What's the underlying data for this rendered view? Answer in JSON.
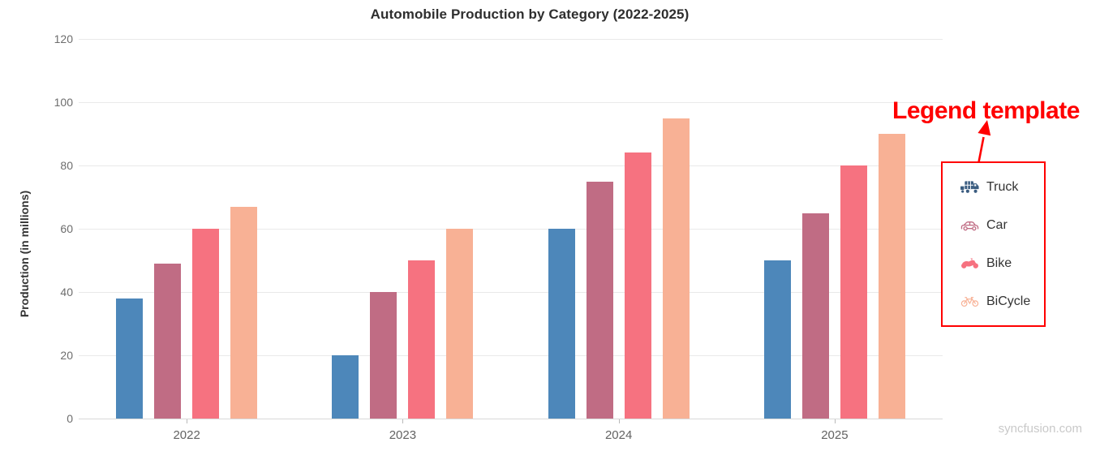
{
  "title": "Automobile Production by Category (2022-2025)",
  "watermark": "syncfusion.com",
  "annotation": {
    "label": "Legend template",
    "color": "#ff0000"
  },
  "legend": {
    "border_color": "#ff0000",
    "items": [
      {
        "label": "Truck",
        "icon": "truck-icon",
        "color": "#3a5c80"
      },
      {
        "label": "Car",
        "icon": "car-icon",
        "color": "#c06c84"
      },
      {
        "label": "Bike",
        "icon": "motorcycle-icon",
        "color": "#f67280"
      },
      {
        "label": "BiCycle",
        "icon": "bicycle-icon",
        "color": "#f8b195"
      }
    ]
  },
  "chart_data": {
    "type": "bar",
    "title": "Automobile Production by Category (2022-2025)",
    "categories": [
      "2022",
      "2023",
      "2024",
      "2025"
    ],
    "series": [
      {
        "name": "Truck",
        "color": "#4d87ba",
        "values": [
          38,
          20,
          60,
          50
        ]
      },
      {
        "name": "Car",
        "color": "#c06c84",
        "values": [
          49,
          40,
          75,
          65
        ]
      },
      {
        "name": "Bike",
        "color": "#f67280",
        "values": [
          60,
          50,
          84,
          80
        ]
      },
      {
        "name": "BiCycle",
        "color": "#f8b195",
        "values": [
          67,
          60,
          95,
          90
        ]
      }
    ],
    "xlabel": "",
    "ylabel": "Production (in millions)",
    "ylim": [
      0,
      120
    ],
    "yticks": [
      0,
      20,
      40,
      60,
      80,
      100,
      120
    ],
    "grid": true,
    "legend_position": "right"
  }
}
